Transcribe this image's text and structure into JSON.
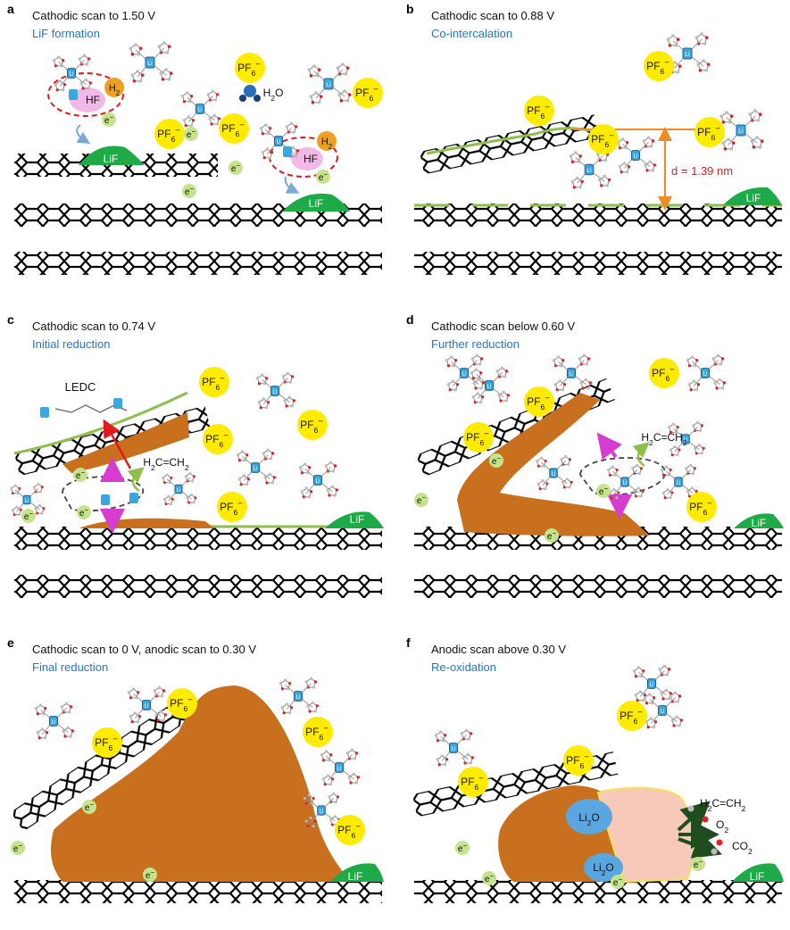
{
  "panels": [
    {
      "label": "a",
      "title": "Cathodic scan to 1.50 V",
      "subtitle": "LiF formation"
    },
    {
      "label": "b",
      "title": "Cathodic scan to 0.88 V",
      "subtitle": "Co-intercalation"
    },
    {
      "label": "c",
      "title": "Cathodic scan to 0.74 V",
      "subtitle": "Initial reduction"
    },
    {
      "label": "d",
      "title": "Cathodic scan below 0.60 V",
      "subtitle": "Further reduction"
    },
    {
      "label": "e",
      "title": "Cathodic scan to 0 V, anodic scan to 0.30 V",
      "subtitle": "Final reduction"
    },
    {
      "label": "f",
      "title": "Anodic scan above 0.30 V",
      "subtitle": "Re-oxidation"
    }
  ],
  "species": {
    "pf6": "PF6−",
    "electron": "e−",
    "lif": "LiF",
    "li": "Li",
    "hf": "HF",
    "h2": "H2",
    "h2o": "H2O",
    "ledc": "LEDC",
    "ethylene": "H2C=CH2",
    "li2o": "Li2O",
    "o2": "O2",
    "co2": "CO2",
    "spacing": "d = 1.39 nm"
  },
  "colors": {
    "pf6": "#ffeb00",
    "electron": "#c4e38c",
    "lif": "#1faa48",
    "sei": "#c8701e",
    "li": "#3ba7e0",
    "oxidized": "#f7c9b8",
    "arrow_orange": "#f08a24",
    "arrow_red": "#e31a1c",
    "arrow_magenta": "#d63cd0",
    "dashed_red": "#e31a1c"
  }
}
